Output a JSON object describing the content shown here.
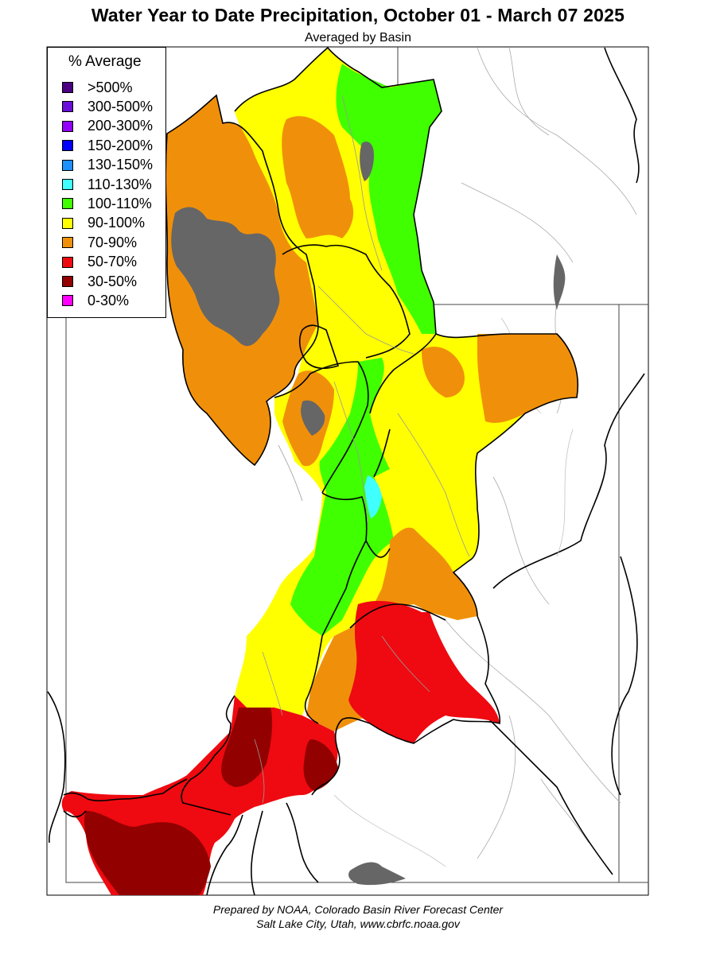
{
  "header": {
    "title": "Water Year to Date Precipitation, October 01  - March 07 2025",
    "subtitle": "Averaged by Basin"
  },
  "legend": {
    "title": "% Average",
    "items": [
      {
        "label": ">500%",
        "color": "#4b0082"
      },
      {
        "label": "300-500%",
        "color": "#6a0dd8"
      },
      {
        "label": "200-300%",
        "color": "#9400ff"
      },
      {
        "label": "150-200%",
        "color": "#0000ff"
      },
      {
        "label": "130-150%",
        "color": "#1e90ff"
      },
      {
        "label": "110-130%",
        "color": "#40ffff"
      },
      {
        "label": "100-110%",
        "color": "#40ff00"
      },
      {
        "label": "90-100%",
        "color": "#ffff00"
      },
      {
        "label": "70-90%",
        "color": "#f0900a"
      },
      {
        "label": "50-70%",
        "color": "#ee0a10"
      },
      {
        "label": "30-50%",
        "color": "#920000"
      },
      {
        "label": "0-30%",
        "color": "#ff00ff"
      }
    ]
  },
  "map": {
    "lake_color": "#666666",
    "boundary_color": "#000000",
    "state_line_color": "#444444",
    "river_color": "#999999"
  },
  "footer": {
    "line1": "Prepared by NOAA, Colorado Basin River Forecast Center",
    "line2": "Salt Lake City, Utah, www.cbrfc.noaa.gov"
  }
}
